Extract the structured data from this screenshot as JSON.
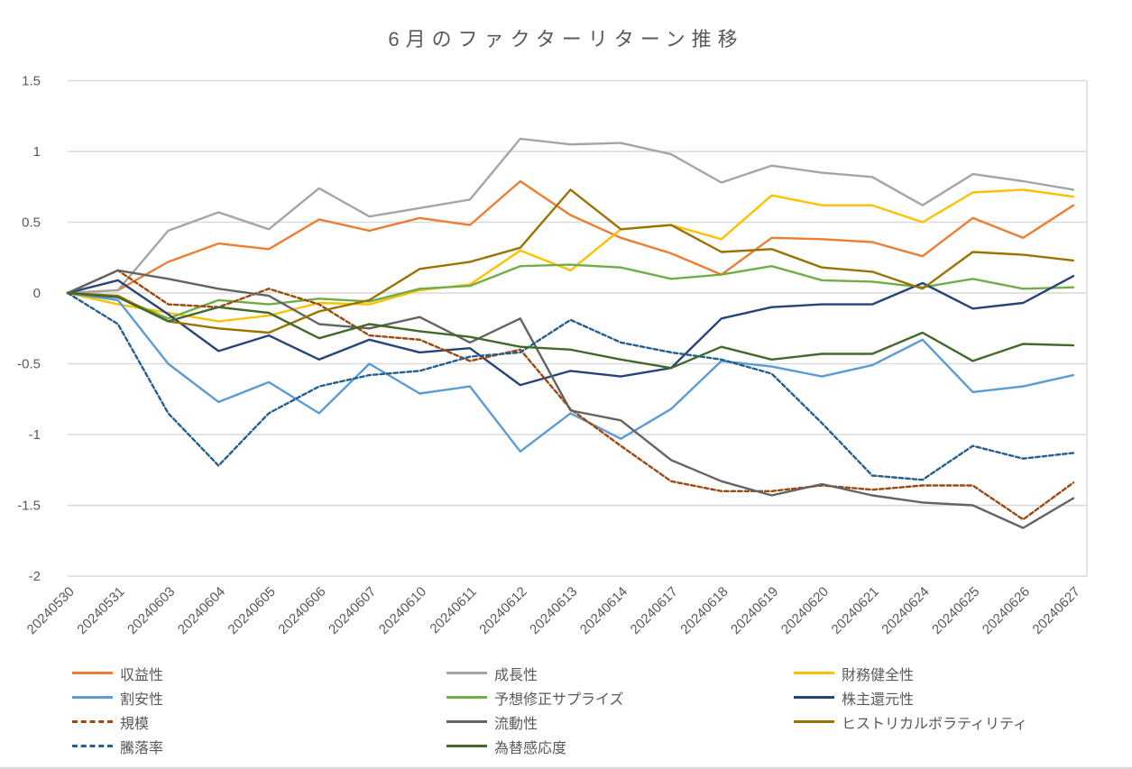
{
  "chart_data": {
    "type": "line",
    "title": "6月のファクターリターン推移",
    "xlabel": "",
    "ylabel": "",
    "ylim": [
      -2,
      1.5
    ],
    "y_ticks": [
      1.5,
      1,
      0.5,
      0,
      -0.5,
      -1,
      -1.5,
      -2
    ],
    "y_tick_labels": [
      "1.5",
      "1",
      "0.5",
      "0",
      "-0.5",
      "-1",
      "-1.5",
      "-2"
    ],
    "grid": true,
    "legend_position": "bottom",
    "x": [
      "20240530",
      "20240531",
      "20240603",
      "20240604",
      "20240605",
      "20240606",
      "20240607",
      "20240610",
      "20240611",
      "20240612",
      "20240613",
      "20240614",
      "20240617",
      "20240618",
      "20240619",
      "20240620",
      "20240621",
      "20240624",
      "20240625",
      "20240626",
      "20240627"
    ],
    "series": [
      {
        "name": "収益性",
        "color": "#ED7D31",
        "dash": false,
        "values": [
          0,
          0.02,
          0.22,
          0.35,
          0.31,
          0.52,
          0.44,
          0.53,
          0.48,
          0.79,
          0.55,
          0.39,
          0.28,
          0.13,
          0.39,
          0.38,
          0.36,
          0.26,
          0.53,
          0.39,
          0.62
        ]
      },
      {
        "name": "成長性",
        "color": "#A5A5A5",
        "dash": false,
        "values": [
          0,
          0.02,
          0.44,
          0.57,
          0.45,
          0.74,
          0.54,
          0.6,
          0.66,
          1.09,
          1.05,
          1.06,
          0.98,
          0.78,
          0.9,
          0.85,
          0.82,
          0.62,
          0.84,
          0.79,
          0.73
        ]
      },
      {
        "name": "財務健全性",
        "color": "#FFC000",
        "dash": false,
        "values": [
          0,
          -0.08,
          -0.14,
          -0.2,
          -0.16,
          -0.07,
          -0.08,
          0.02,
          0.06,
          0.3,
          0.16,
          0.45,
          0.48,
          0.38,
          0.69,
          0.62,
          0.62,
          0.5,
          0.71,
          0.73,
          0.68
        ]
      },
      {
        "name": "割安性",
        "color": "#5B9BD5",
        "dash": false,
        "values": [
          0,
          -0.05,
          -0.5,
          -0.77,
          -0.63,
          -0.85,
          -0.5,
          -0.71,
          -0.66,
          -1.12,
          -0.85,
          -1.03,
          -0.82,
          -0.48,
          -0.52,
          -0.59,
          -0.51,
          -0.33,
          -0.7,
          -0.66,
          -0.58
        ]
      },
      {
        "name": "予想修正サプライズ",
        "color": "#70AD47",
        "dash": false,
        "values": [
          0,
          -0.03,
          -0.18,
          -0.05,
          -0.08,
          -0.04,
          -0.06,
          0.03,
          0.05,
          0.19,
          0.2,
          0.18,
          0.1,
          0.13,
          0.19,
          0.09,
          0.08,
          0.04,
          0.1,
          0.03,
          0.04
        ]
      },
      {
        "name": "株主還元性",
        "color": "#264478",
        "dash": false,
        "values": [
          0,
          0.09,
          -0.15,
          -0.41,
          -0.3,
          -0.47,
          -0.33,
          -0.42,
          -0.39,
          -0.65,
          -0.55,
          -0.59,
          -0.53,
          -0.18,
          -0.1,
          -0.08,
          -0.08,
          0.07,
          -0.11,
          -0.07,
          0.12
        ]
      },
      {
        "name": "規模",
        "color": "#9E480E",
        "dash": true,
        "values": [
          0,
          0.16,
          -0.08,
          -0.1,
          0.03,
          -0.08,
          -0.3,
          -0.33,
          -0.48,
          -0.4,
          -0.82,
          -1.08,
          -1.33,
          -1.4,
          -1.4,
          -1.36,
          -1.39,
          -1.36,
          -1.36,
          -1.6,
          -1.34
        ]
      },
      {
        "name": "流動性",
        "color": "#636363",
        "dash": false,
        "values": [
          0,
          0.16,
          0.1,
          0.03,
          -0.02,
          -0.22,
          -0.25,
          -0.17,
          -0.35,
          -0.18,
          -0.83,
          -0.9,
          -1.18,
          -1.33,
          -1.43,
          -1.35,
          -1.43,
          -1.48,
          -1.5,
          -1.66,
          -1.45
        ]
      },
      {
        "name": "ヒストリカルボラティリティ",
        "color": "#997300",
        "dash": false,
        "values": [
          0,
          -0.02,
          -0.2,
          -0.25,
          -0.28,
          -0.13,
          -0.05,
          0.17,
          0.22,
          0.32,
          0.73,
          0.45,
          0.48,
          0.29,
          0.31,
          0.18,
          0.15,
          0.03,
          0.29,
          0.27,
          0.23
        ]
      },
      {
        "name": "騰落率",
        "color": "#255E91",
        "dash": true,
        "values": [
          0,
          -0.22,
          -0.85,
          -1.22,
          -0.85,
          -0.66,
          -0.58,
          -0.55,
          -0.45,
          -0.42,
          -0.19,
          -0.35,
          -0.42,
          -0.47,
          -0.57,
          -0.92,
          -1.29,
          -1.32,
          -1.08,
          -1.17,
          -1.13
        ]
      },
      {
        "name": "為替感応度",
        "color": "#43682B",
        "dash": false,
        "values": [
          0,
          -0.03,
          -0.2,
          -0.1,
          -0.14,
          -0.32,
          -0.22,
          -0.27,
          -0.31,
          -0.38,
          -0.4,
          -0.47,
          -0.53,
          -0.38,
          -0.47,
          -0.43,
          -0.43,
          -0.28,
          -0.48,
          -0.36,
          -0.37
        ]
      }
    ]
  },
  "colors": {
    "grid": "#D9D9D9",
    "axis_text": "#595959",
    "title_text": "#595959",
    "background": "#FFFFFF"
  }
}
